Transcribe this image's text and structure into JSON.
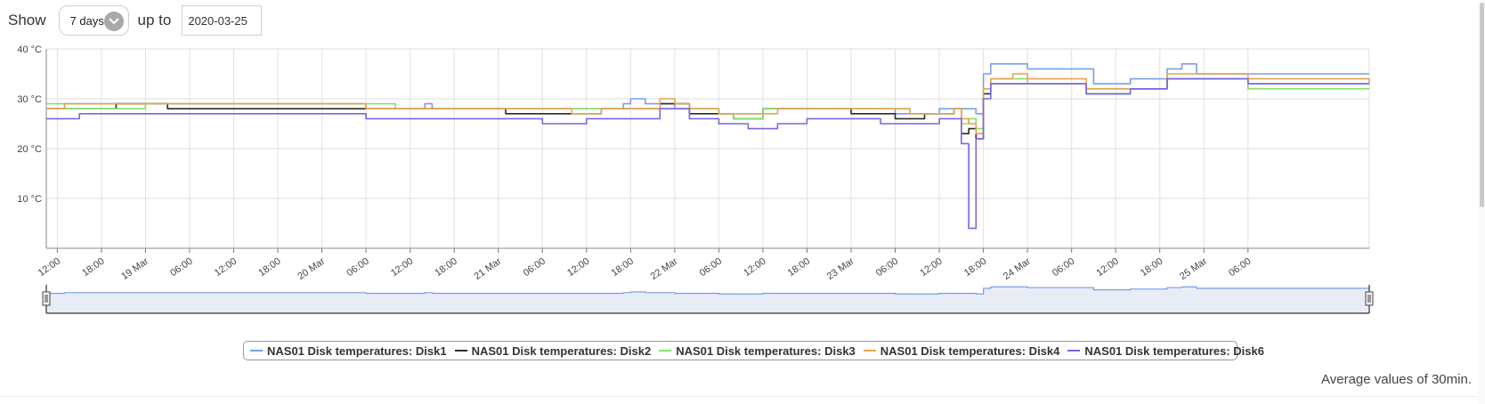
{
  "controls": {
    "show_label": "Show",
    "range_value": "7 days",
    "upto_label": "up to",
    "date_value": "2020-03-25"
  },
  "legend": {
    "items": [
      {
        "label": "NAS01 Disk temperatures: Disk1",
        "color": "#7b9ee8"
      },
      {
        "label": "NAS01 Disk temperatures: Disk2",
        "color": "#2b2b2b"
      },
      {
        "label": "NAS01 Disk temperatures: Disk3",
        "color": "#86e06c"
      },
      {
        "label": "NAS01 Disk temperatures: Disk4",
        "color": "#e8a24e"
      },
      {
        "label": "NAS01 Disk temperatures: Disk6",
        "color": "#7b66e0"
      }
    ]
  },
  "footer_note": "Average values of 30min.",
  "chart_data": {
    "type": "line",
    "y_unit": "°C",
    "ylim": [
      0,
      40
    ],
    "yticks": [
      10,
      20,
      30,
      40
    ],
    "ytick_labels": [
      "10 °C",
      "20 °C",
      "30 °C",
      "40 °C"
    ],
    "x_range_hours": [
      -13.5,
      166.5
    ],
    "xticks": [
      {
        "h": -12,
        "label": "12:00"
      },
      {
        "h": -6,
        "label": "18:00"
      },
      {
        "h": 0,
        "label": "19 Mar"
      },
      {
        "h": 6,
        "label": "06:00"
      },
      {
        "h": 12,
        "label": "12:00"
      },
      {
        "h": 18,
        "label": "18:00"
      },
      {
        "h": 24,
        "label": "20 Mar"
      },
      {
        "h": 30,
        "label": "06:00"
      },
      {
        "h": 36,
        "label": "12:00"
      },
      {
        "h": 42,
        "label": "18:00"
      },
      {
        "h": 48,
        "label": "21 Mar"
      },
      {
        "h": 54,
        "label": "06:00"
      },
      {
        "h": 60,
        "label": "12:00"
      },
      {
        "h": 66,
        "label": "18:00"
      },
      {
        "h": 72,
        "label": "22 Mar"
      },
      {
        "h": 78,
        "label": "06:00"
      },
      {
        "h": 84,
        "label": "12:00"
      },
      {
        "h": 90,
        "label": "18:00"
      },
      {
        "h": 96,
        "label": "23 Mar"
      },
      {
        "h": 102,
        "label": "06:00"
      },
      {
        "h": 108,
        "label": "12:00"
      },
      {
        "h": 114,
        "label": "18:00"
      },
      {
        "h": 120,
        "label": "24 Mar"
      },
      {
        "h": 126,
        "label": "06:00"
      },
      {
        "h": 132,
        "label": "12:00"
      },
      {
        "h": 138,
        "label": "18:00"
      },
      {
        "h": 144,
        "label": "25 Mar"
      },
      {
        "h": 150,
        "label": "06:00"
      }
    ],
    "grid": true,
    "legend_position": "bottom",
    "series": [
      {
        "name": "NAS01 Disk temperatures: Disk1",
        "color": "#7b9ee8",
        "points": [
          [
            -13.5,
            28
          ],
          [
            -11,
            29
          ],
          [
            -6,
            29
          ],
          [
            -3,
            29
          ],
          [
            3,
            29
          ],
          [
            10,
            29
          ],
          [
            24,
            29
          ],
          [
            30,
            28
          ],
          [
            37,
            28
          ],
          [
            38,
            29
          ],
          [
            39,
            28
          ],
          [
            44,
            28
          ],
          [
            48,
            28
          ],
          [
            55,
            28
          ],
          [
            60,
            28
          ],
          [
            63,
            28
          ],
          [
            65,
            29
          ],
          [
            66,
            30
          ],
          [
            68,
            29
          ],
          [
            72,
            28
          ],
          [
            78,
            27
          ],
          [
            84,
            28
          ],
          [
            90,
            28
          ],
          [
            100,
            28
          ],
          [
            102,
            27
          ],
          [
            108,
            28
          ],
          [
            112,
            28
          ],
          [
            113,
            27
          ],
          [
            114,
            35
          ],
          [
            115,
            37
          ],
          [
            118,
            37
          ],
          [
            120,
            36
          ],
          [
            128,
            36
          ],
          [
            129,
            33
          ],
          [
            134,
            34
          ],
          [
            139,
            36
          ],
          [
            141,
            37
          ],
          [
            143,
            35
          ],
          [
            150,
            35
          ],
          [
            166.5,
            35
          ]
        ]
      },
      {
        "name": "NAS01 Disk temperatures: Disk2",
        "color": "#2b2b2b",
        "points": [
          [
            -13.5,
            28
          ],
          [
            -8,
            28
          ],
          [
            -4,
            29
          ],
          [
            3,
            28
          ],
          [
            20,
            28
          ],
          [
            26,
            28
          ],
          [
            38,
            28
          ],
          [
            49,
            27
          ],
          [
            54,
            27
          ],
          [
            58,
            27
          ],
          [
            62,
            28
          ],
          [
            66,
            28
          ],
          [
            70,
            29
          ],
          [
            74,
            27
          ],
          [
            80,
            26
          ],
          [
            84,
            28
          ],
          [
            90,
            28
          ],
          [
            96,
            27
          ],
          [
            102,
            26
          ],
          [
            106,
            27
          ],
          [
            110,
            28
          ],
          [
            111,
            23
          ],
          [
            112,
            24
          ],
          [
            113,
            22
          ],
          [
            114,
            31
          ],
          [
            115,
            33
          ],
          [
            118,
            33
          ],
          [
            120,
            33
          ],
          [
            126,
            33
          ],
          [
            128,
            31
          ],
          [
            134,
            32
          ],
          [
            139,
            34
          ],
          [
            141,
            34
          ],
          [
            150,
            33
          ],
          [
            166.5,
            33
          ]
        ]
      },
      {
        "name": "NAS01 Disk temperatures: Disk3",
        "color": "#86e06c",
        "points": [
          [
            -13.5,
            29
          ],
          [
            -11,
            28
          ],
          [
            -3,
            28
          ],
          [
            0,
            29
          ],
          [
            12,
            29
          ],
          [
            24,
            29
          ],
          [
            30,
            29
          ],
          [
            34,
            28
          ],
          [
            44,
            28
          ],
          [
            50,
            28
          ],
          [
            56,
            28
          ],
          [
            60,
            28
          ],
          [
            66,
            28
          ],
          [
            70,
            28
          ],
          [
            74,
            28
          ],
          [
            78,
            27
          ],
          [
            80,
            26
          ],
          [
            84,
            28
          ],
          [
            90,
            28
          ],
          [
            96,
            28
          ],
          [
            104,
            27
          ],
          [
            110,
            28
          ],
          [
            111,
            25
          ],
          [
            112,
            26
          ],
          [
            113,
            24
          ],
          [
            114,
            32
          ],
          [
            115,
            34
          ],
          [
            118,
            34
          ],
          [
            120,
            33
          ],
          [
            126,
            33
          ],
          [
            128,
            31
          ],
          [
            134,
            32
          ],
          [
            139,
            34
          ],
          [
            141,
            34
          ],
          [
            150,
            32
          ],
          [
            166.5,
            32
          ]
        ]
      },
      {
        "name": "NAS01 Disk temperatures: Disk4",
        "color": "#e8a24e",
        "points": [
          [
            -13.5,
            28
          ],
          [
            -11,
            29
          ],
          [
            10,
            29
          ],
          [
            24,
            29
          ],
          [
            30,
            28
          ],
          [
            48,
            28
          ],
          [
            54,
            28
          ],
          [
            58,
            27
          ],
          [
            62,
            28
          ],
          [
            66,
            28
          ],
          [
            70,
            30
          ],
          [
            72,
            29
          ],
          [
            74,
            28
          ],
          [
            78,
            27
          ],
          [
            82,
            27
          ],
          [
            86,
            28
          ],
          [
            98,
            28
          ],
          [
            104,
            27
          ],
          [
            110,
            28
          ],
          [
            111,
            26
          ],
          [
            112,
            25
          ],
          [
            113,
            23
          ],
          [
            114,
            32
          ],
          [
            115,
            34
          ],
          [
            118,
            35
          ],
          [
            120,
            34
          ],
          [
            126,
            34
          ],
          [
            128,
            32
          ],
          [
            134,
            32
          ],
          [
            139,
            35
          ],
          [
            141,
            35
          ],
          [
            150,
            34
          ],
          [
            166.5,
            33
          ]
        ]
      },
      {
        "name": "NAS01 Disk temperatures: Disk6",
        "color": "#7b66e0",
        "points": [
          [
            -13.5,
            26
          ],
          [
            -10,
            26
          ],
          [
            -9,
            27
          ],
          [
            24,
            27
          ],
          [
            30,
            26
          ],
          [
            48,
            26
          ],
          [
            54,
            25
          ],
          [
            58,
            25
          ],
          [
            60,
            26
          ],
          [
            66,
            26
          ],
          [
            70,
            28
          ],
          [
            72,
            28
          ],
          [
            74,
            26
          ],
          [
            78,
            25
          ],
          [
            82,
            24
          ],
          [
            86,
            25
          ],
          [
            90,
            26
          ],
          [
            96,
            26
          ],
          [
            100,
            25
          ],
          [
            104,
            25
          ],
          [
            108,
            26
          ],
          [
            110,
            26
          ],
          [
            111,
            21
          ],
          [
            112,
            4
          ],
          [
            113,
            22
          ],
          [
            114,
            30
          ],
          [
            115,
            33
          ],
          [
            118,
            33
          ],
          [
            126,
            33
          ],
          [
            128,
            31
          ],
          [
            134,
            32
          ],
          [
            139,
            34
          ],
          [
            141,
            34
          ],
          [
            150,
            33
          ],
          [
            166.5,
            33
          ]
        ]
      }
    ]
  }
}
